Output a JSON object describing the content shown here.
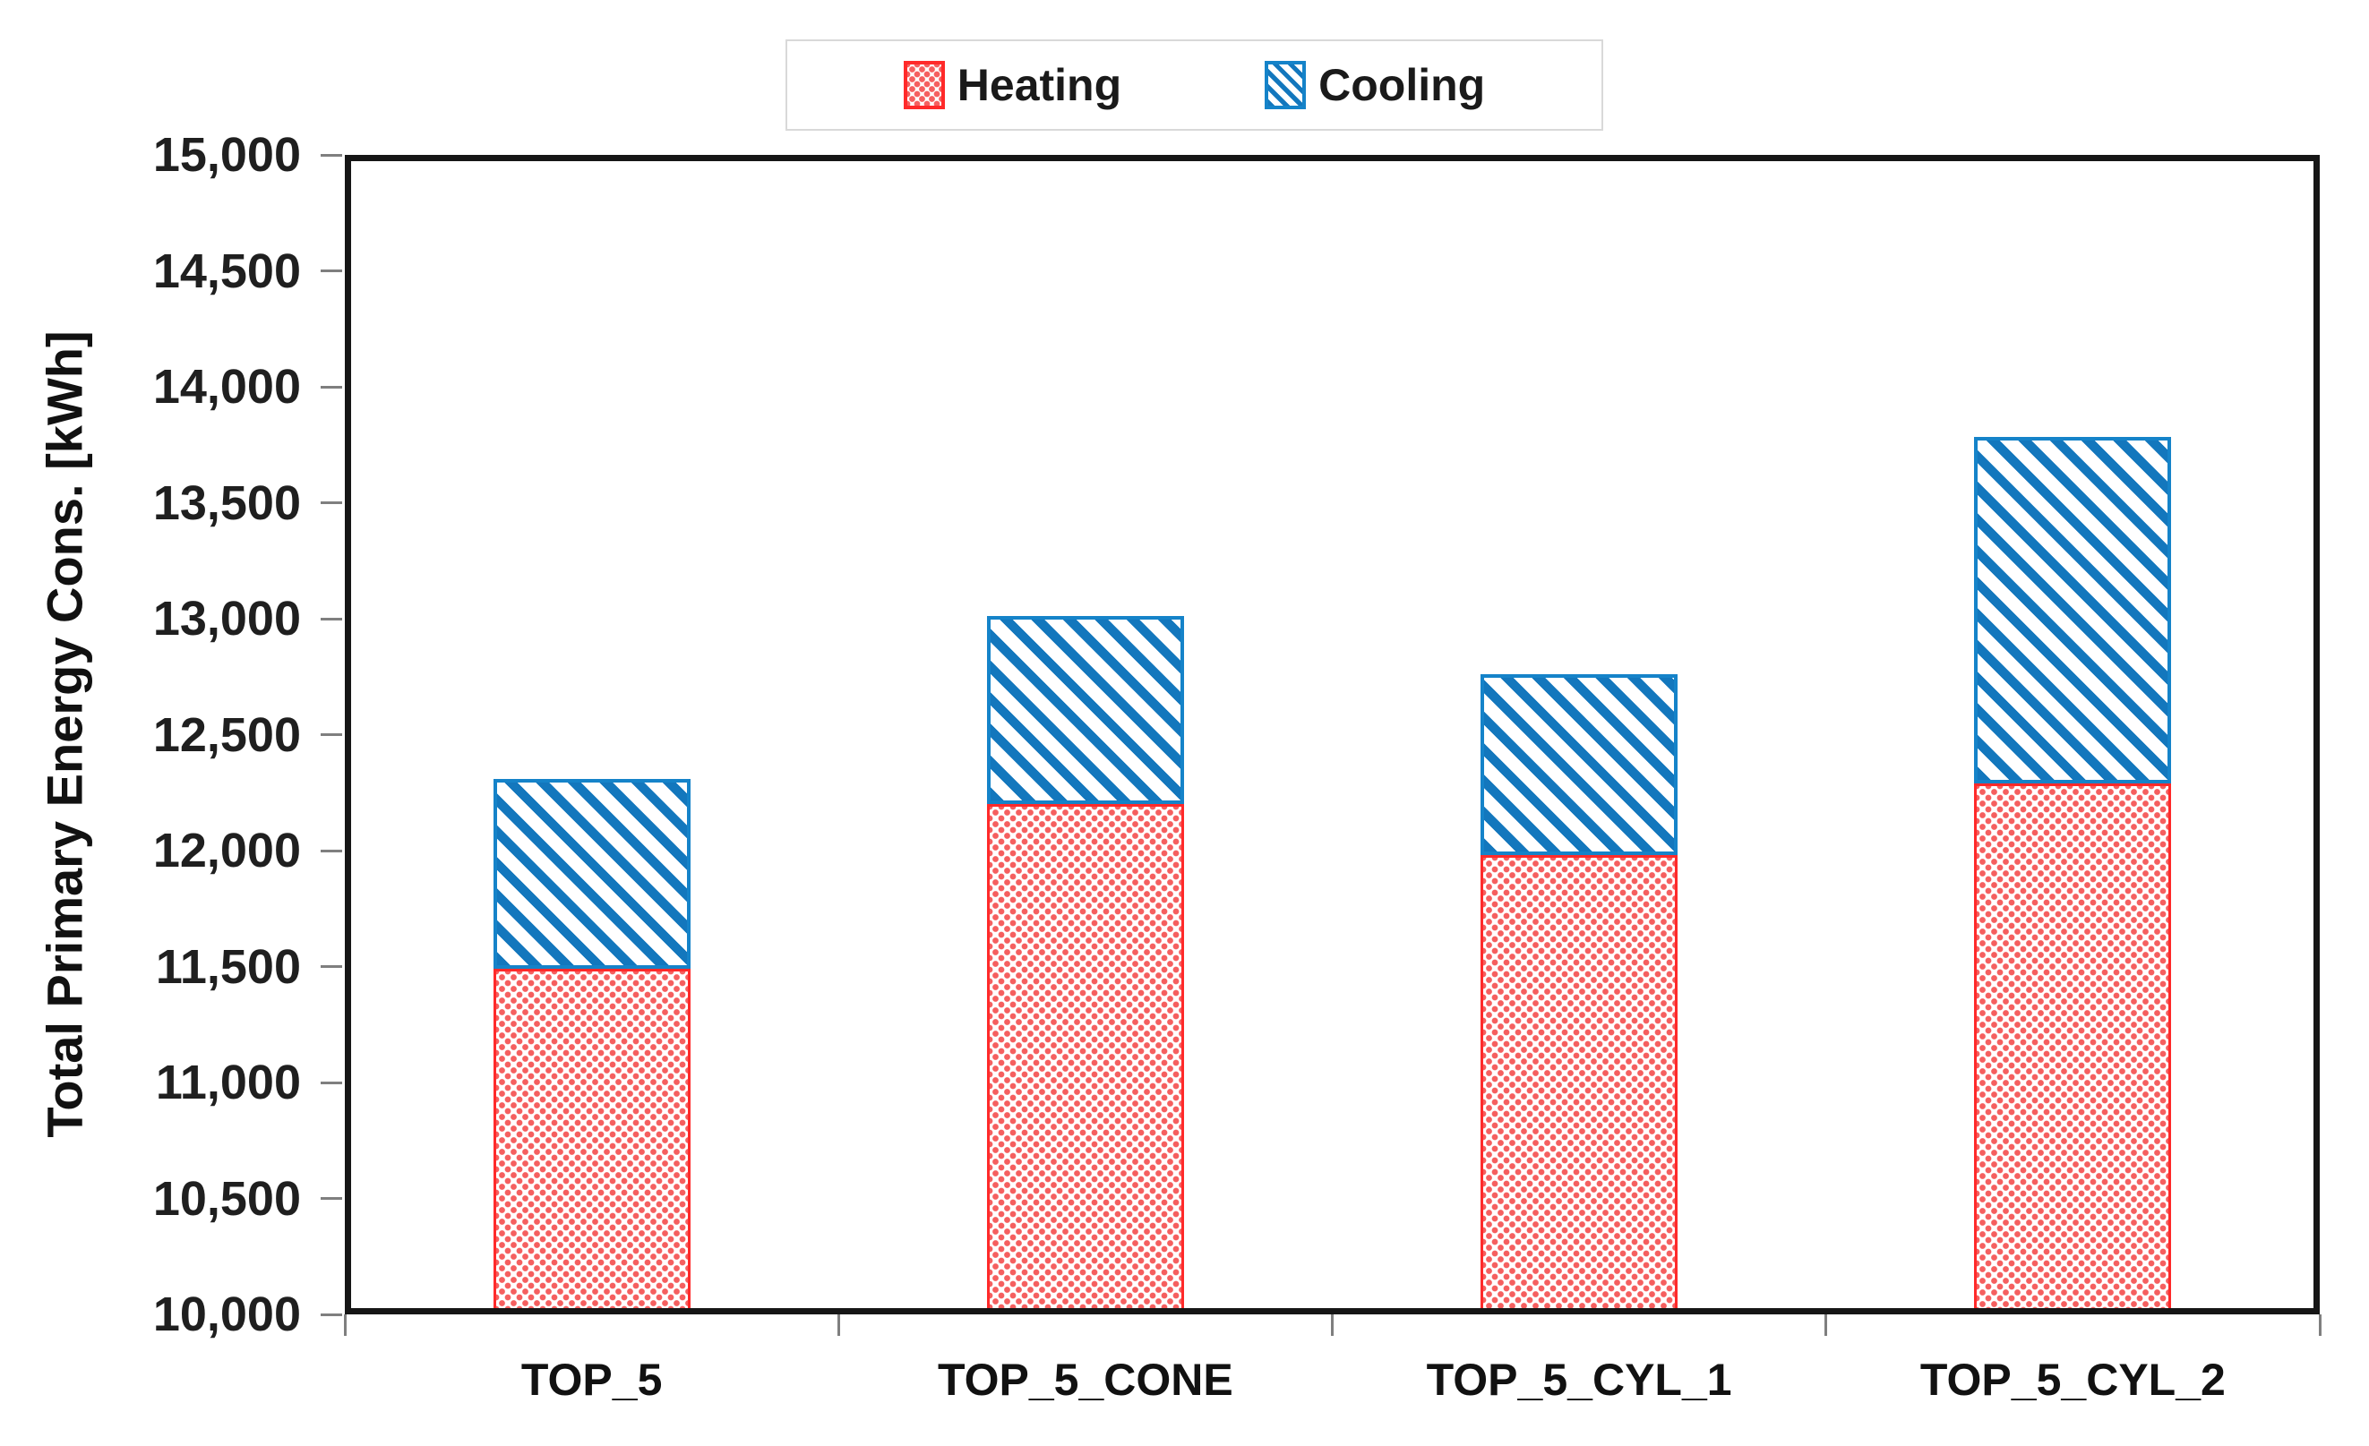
{
  "chart_data": {
    "type": "bar",
    "stacked": true,
    "categories": [
      "TOP_5",
      "TOP_5_CONE",
      "TOP_5_CYL_1",
      "TOP_5_CYL_2"
    ],
    "series": [
      {
        "name": "Heating",
        "pattern": "red-dots",
        "values": [
          11490,
          12200,
          11980,
          12290
        ]
      },
      {
        "name": "Cooling",
        "pattern": "blue-diagonal-stripes",
        "values": [
          820,
          810,
          780,
          1495
        ]
      }
    ],
    "stack_totals": [
      12310,
      13010,
      12760,
      13785
    ],
    "title": "",
    "xlabel": "",
    "ylabel": "Total Primary Energy Cons. [kWh]",
    "ylim": [
      10000,
      15000
    ],
    "ytick_step": 500,
    "ytick_labels": [
      "15,000",
      "14,500",
      "14,000",
      "13,500",
      "13,000",
      "12,500",
      "12,000",
      "11,500",
      "11,000",
      "10,500",
      "10,000"
    ],
    "grid": false,
    "legend_position": "top-center",
    "colors": {
      "heating_border": "#ff2a2a",
      "heating_dot": "#f55f5f",
      "cooling_stripe": "#1377bd",
      "cooling_border": "#1583c9",
      "frame": "#161616",
      "tick": "#7f7f7f",
      "text": "#1a1a1a"
    }
  }
}
